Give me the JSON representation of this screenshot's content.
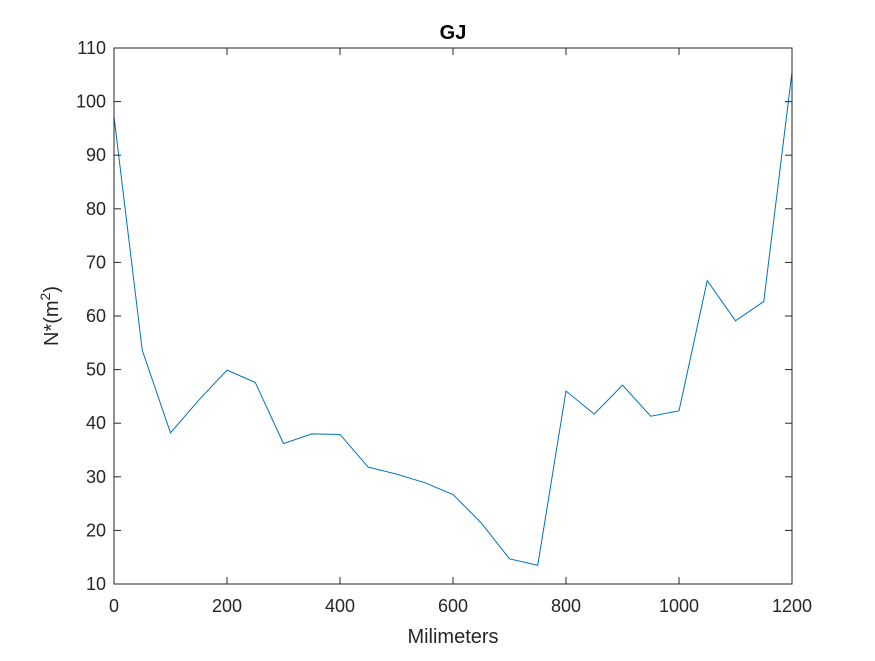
{
  "chart_data": {
    "type": "line",
    "title": "GJ",
    "xlabel": "Milimeters",
    "ylabel_main": "N*(m",
    "ylabel_sup": "2",
    "ylabel_close": ")",
    "xlim": [
      0,
      1200
    ],
    "ylim": [
      10,
      110
    ],
    "xticks": [
      0,
      200,
      400,
      600,
      800,
      1000,
      1200
    ],
    "yticks": [
      10,
      20,
      30,
      40,
      50,
      60,
      70,
      80,
      90,
      100,
      110
    ],
    "grid": false,
    "series": [
      {
        "color": "#0072BD",
        "x": [
          0,
          50,
          100,
          150,
          200,
          250,
          300,
          350,
          400,
          450,
          500,
          550,
          600,
          650,
          700,
          750,
          800,
          850,
          900,
          950,
          1000,
          1050,
          1100,
          1150,
          1200
        ],
        "y": [
          97.2,
          53.6,
          38.2,
          44.3,
          49.9,
          47.6,
          36.2,
          38.0,
          37.9,
          31.8,
          30.5,
          28.9,
          26.7,
          21.4,
          14.7,
          13.5,
          46.0,
          41.7,
          47.1,
          41.3,
          42.3,
          66.6,
          59.1,
          62.7,
          105.5
        ]
      }
    ]
  }
}
